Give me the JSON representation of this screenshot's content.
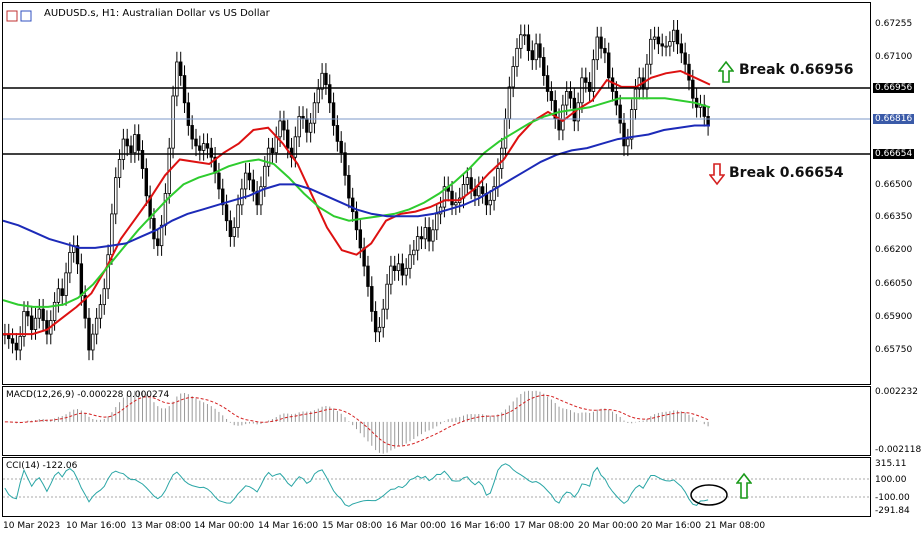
{
  "header": {
    "symbol_title": "AUDUSD.s, H1:  Australian Dollar vs US Dollar"
  },
  "annotations": {
    "break_up_label": "Break 0.66956",
    "break_down_label": "Break 0.66654",
    "break_up_color": "#1a9a1a",
    "break_down_color": "#d42020"
  },
  "price_panel": {
    "y_ticks": [
      "0.67255",
      "0.67100",
      "0.66956",
      "0.66816",
      "0.66654",
      "0.66500",
      "0.66350",
      "0.66200",
      "0.66050",
      "0.65900",
      "0.65750"
    ],
    "highlight_labels": [
      {
        "value": "0.66956",
        "style": "black"
      },
      {
        "value": "0.66816",
        "style": "blue"
      },
      {
        "value": "0.66654",
        "style": "black"
      }
    ]
  },
  "macd_panel": {
    "title": "MACD(12,26,9) -0.000228 0.000274",
    "y_ticks": [
      "0.002232",
      "-0.002118"
    ]
  },
  "cci_panel": {
    "title": "CCI(14) -122.06",
    "y_ticks": [
      "315.11",
      "100.00",
      "-100.00",
      "-291.84"
    ]
  },
  "x_axis": {
    "labels": [
      "10 Mar 2023",
      "10 Mar 16:00",
      "13 Mar 08:00",
      "14 Mar 00:00",
      "14 Mar 16:00",
      "15 Mar 08:00",
      "16 Mar 00:00",
      "16 Mar 16:00",
      "17 Mar 08:00",
      "20 Mar 00:00",
      "20 Mar 16:00",
      "21 Mar 08:00"
    ]
  },
  "chart_data": {
    "type": "line",
    "title": "AUDUSD.s, H1:  Australian Dollar vs US Dollar",
    "ylim": [
      0.6568,
      0.6736
    ],
    "horizontal_levels": [
      0.66956,
      0.66654
    ],
    "current_price": 0.66816,
    "series": [
      {
        "name": "Close",
        "color": "#000000",
        "values": [
          0.659,
          0.6588,
          0.6586,
          0.6583,
          0.6589,
          0.66,
          0.6598,
          0.6592,
          0.6597,
          0.6601,
          0.6596,
          0.659,
          0.6596,
          0.6604,
          0.661,
          0.6607,
          0.6617,
          0.6626,
          0.6629,
          0.6621,
          0.6607,
          0.6597,
          0.6583,
          0.659,
          0.6597,
          0.6603,
          0.661,
          0.6625,
          0.6643,
          0.6659,
          0.6667,
          0.6676,
          0.6673,
          0.667,
          0.6678,
          0.6671,
          0.6663,
          0.6651,
          0.6641,
          0.6632,
          0.6629,
          0.6638,
          0.6652,
          0.6672,
          0.6695,
          0.671,
          0.6704,
          0.6692,
          0.6682,
          0.6676,
          0.6673,
          0.6671,
          0.6674,
          0.6672,
          0.6668,
          0.6661,
          0.6654,
          0.6647,
          0.664,
          0.6633,
          0.6637,
          0.6647,
          0.6654,
          0.6661,
          0.6658,
          0.6653,
          0.6647,
          0.6655,
          0.6664,
          0.6672,
          0.667,
          0.6677,
          0.6684,
          0.668,
          0.6672,
          0.6668,
          0.6677,
          0.6686,
          0.6685,
          0.6679,
          0.6683,
          0.6692,
          0.6698,
          0.6705,
          0.67,
          0.6692,
          0.6682,
          0.6675,
          0.667,
          0.666,
          0.665,
          0.6644,
          0.6636,
          0.6628,
          0.662,
          0.6611,
          0.66,
          0.6591,
          0.6593,
          0.6601,
          0.6612,
          0.662,
          0.6618,
          0.6621,
          0.6616,
          0.6619,
          0.6625,
          0.6627,
          0.6633,
          0.6632,
          0.6637,
          0.6631,
          0.6636,
          0.6643,
          0.6646,
          0.6655,
          0.6653,
          0.6647,
          0.6648,
          0.665,
          0.6656,
          0.6659,
          0.6654,
          0.6651,
          0.6655,
          0.6652,
          0.6647,
          0.6649,
          0.6655,
          0.6663,
          0.6672,
          0.6685,
          0.6699,
          0.6708,
          0.6716,
          0.6722,
          0.6722,
          0.6715,
          0.6711,
          0.6718,
          0.6712,
          0.6704,
          0.6697,
          0.6693,
          0.6685,
          0.668,
          0.6691,
          0.6697,
          0.6694,
          0.6684,
          0.6692,
          0.6703,
          0.6701,
          0.6697,
          0.6711,
          0.6721,
          0.6716,
          0.6714,
          0.6703,
          0.6697,
          0.6691,
          0.6683,
          0.6673,
          0.6676,
          0.6689,
          0.6698,
          0.6703,
          0.6698,
          0.6709,
          0.672,
          0.6721,
          0.6718,
          0.6717,
          0.6717,
          0.6719,
          0.6724,
          0.6718,
          0.6714,
          0.6709,
          0.6702,
          0.6694,
          0.669,
          0.6691,
          0.6686,
          0.6682
        ]
      },
      {
        "name": "MA fast",
        "color": "#dd1111",
        "values": [
          0.659,
          0.659,
          0.659,
          0.6592,
          0.6597,
          0.6602,
          0.6608,
          0.6619,
          0.6632,
          0.6641,
          0.665,
          0.666,
          0.6667,
          0.6666,
          0.6665,
          0.667,
          0.6674,
          0.668,
          0.6681,
          0.6674,
          0.6665,
          0.6651,
          0.6637,
          0.6627,
          0.6625,
          0.663,
          0.664,
          0.6643,
          0.6644,
          0.6646,
          0.6649,
          0.6649,
          0.6654,
          0.6661,
          0.6667,
          0.6677,
          0.6684,
          0.6688,
          0.6684,
          0.6689,
          0.6693,
          0.6702,
          0.6699,
          0.6699,
          0.6703,
          0.6705,
          0.6706,
          0.6703,
          0.67
        ]
      },
      {
        "name": "MA medium",
        "color": "#2ecc2e",
        "values": [
          0.6605,
          0.6603,
          0.6602,
          0.6602,
          0.6603,
          0.6606,
          0.6612,
          0.662,
          0.6628,
          0.6636,
          0.6643,
          0.665,
          0.6656,
          0.6659,
          0.6661,
          0.6664,
          0.6666,
          0.6667,
          0.6665,
          0.6659,
          0.6652,
          0.6646,
          0.6642,
          0.664,
          0.6641,
          0.6642,
          0.6643,
          0.6645,
          0.6648,
          0.6652,
          0.6657,
          0.6663,
          0.667,
          0.6675,
          0.6679,
          0.6683,
          0.6686,
          0.6688,
          0.6689,
          0.669,
          0.6692,
          0.6694,
          0.6694,
          0.6694,
          0.6694,
          0.6693,
          0.6692,
          0.669
        ]
      },
      {
        "name": "MA slow",
        "color": "#1c2ab8",
        "values": [
          0.664,
          0.6638,
          0.6635,
          0.6632,
          0.663,
          0.6628,
          0.6628,
          0.6629,
          0.663,
          0.6633,
          0.6636,
          0.664,
          0.6643,
          0.6645,
          0.6647,
          0.6649,
          0.6651,
          0.6654,
          0.6656,
          0.6656,
          0.6654,
          0.6651,
          0.6648,
          0.6645,
          0.6643,
          0.6642,
          0.6642,
          0.6642,
          0.6643,
          0.6645,
          0.6647,
          0.665,
          0.6654,
          0.6658,
          0.6662,
          0.6666,
          0.6669,
          0.6671,
          0.6672,
          0.6674,
          0.6676,
          0.6677,
          0.6678,
          0.668,
          0.6681,
          0.6682,
          0.6682
        ]
      }
    ],
    "indicators": {
      "macd": {
        "value": -0.000228,
        "signal": 0.000274,
        "ylim": [
          -0.002118,
          0.002232
        ]
      },
      "cci": {
        "value": -122.06,
        "ylim": [
          -291.84,
          315.11
        ],
        "levels": [
          100,
          -100
        ]
      }
    }
  }
}
